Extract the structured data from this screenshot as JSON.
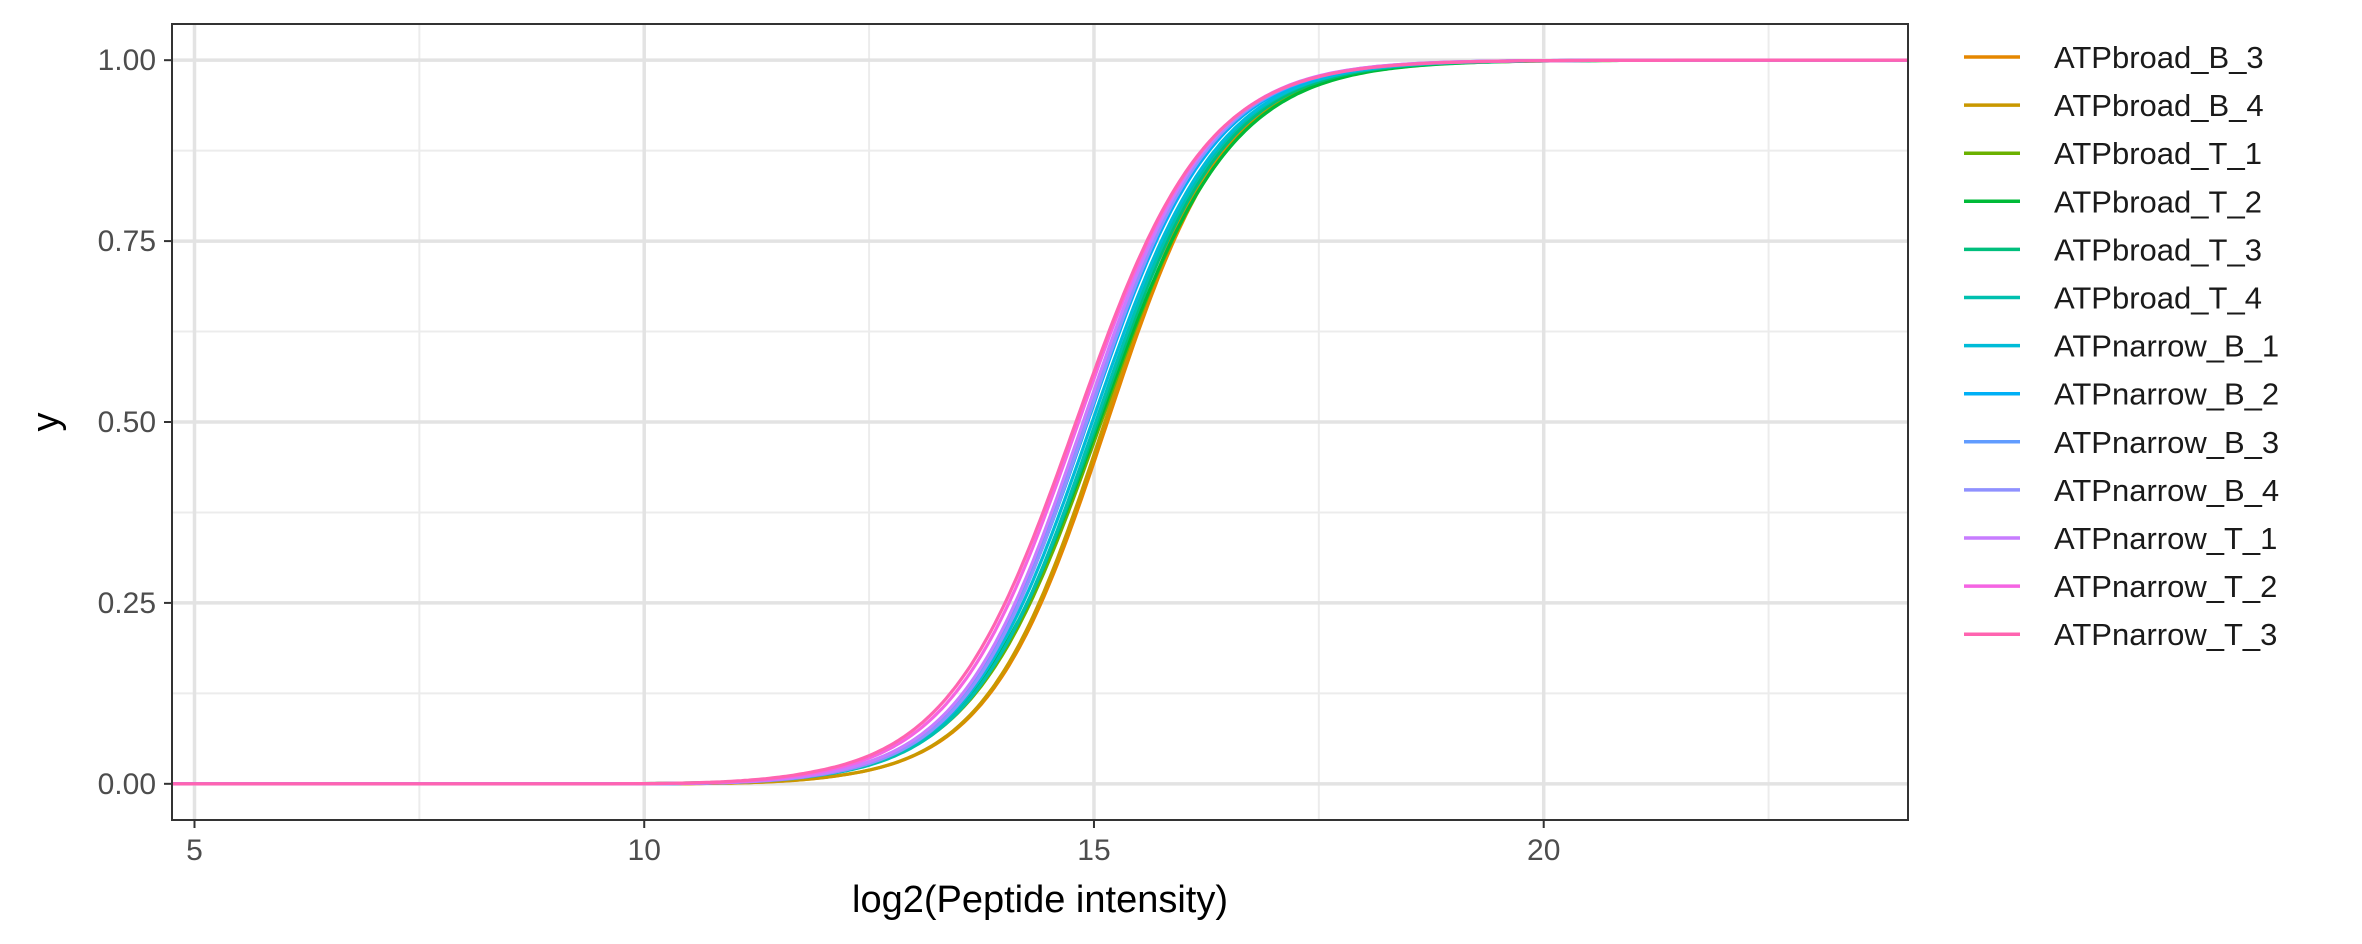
{
  "chart_data": {
    "type": "line",
    "xlabel": "log2(Peptide intensity)",
    "ylabel": "y",
    "xlim": [
      4.75,
      24.05
    ],
    "ylim": [
      -0.05,
      1.05
    ],
    "x_ticks": [
      5,
      10,
      15,
      20
    ],
    "y_ticks": [
      0.0,
      0.25,
      0.5,
      0.75,
      1.0
    ],
    "x_tick_labels": [
      "5",
      "10",
      "15",
      "20"
    ],
    "y_tick_labels": [
      "0.00",
      "0.25",
      "0.50",
      "0.75",
      "1.00"
    ],
    "grid": true,
    "legend_position": "right",
    "series": [
      {
        "name": "ATPbroad_B_3",
        "color": "#E58700",
        "center": 15.15,
        "scale": 1.14,
        "onset": 10.2
      },
      {
        "name": "ATPbroad_B_4",
        "color": "#C99800",
        "center": 15.12,
        "scale": 1.13,
        "onset": 10.1
      },
      {
        "name": "ATPbroad_T_1",
        "color": "#6BB100",
        "center": 15.08,
        "scale": 1.22,
        "onset": 9.7
      },
      {
        "name": "ATPbroad_T_2",
        "color": "#00BA38",
        "center": 15.06,
        "scale": 1.24,
        "onset": 9.6
      },
      {
        "name": "ATPbroad_T_3",
        "color": "#00BF7D",
        "center": 15.04,
        "scale": 1.2,
        "onset": 9.8
      },
      {
        "name": "ATPbroad_T_4",
        "color": "#00C0AF",
        "center": 15.02,
        "scale": 1.18,
        "onset": 9.9
      },
      {
        "name": "ATPnarrow_B_1",
        "color": "#00BCD8",
        "center": 14.98,
        "scale": 1.19,
        "onset": 9.9
      },
      {
        "name": "ATPnarrow_B_2",
        "color": "#00B0F6",
        "center": 14.93,
        "scale": 1.18,
        "onset": 10.0
      },
      {
        "name": "ATPnarrow_B_3",
        "color": "#619CFF",
        "center": 14.9,
        "scale": 1.18,
        "onset": 10.0
      },
      {
        "name": "ATPnarrow_B_4",
        "color": "#8F91FF",
        "center": 14.92,
        "scale": 1.16,
        "onset": 10.0
      },
      {
        "name": "ATPnarrow_T_1",
        "color": "#C77CFF",
        "center": 14.88,
        "scale": 1.17,
        "onset": 10.0
      },
      {
        "name": "ATPnarrow_T_2",
        "color": "#F564E3",
        "center": 14.83,
        "scale": 1.2,
        "onset": 9.9
      },
      {
        "name": "ATPnarrow_T_3",
        "color": "#FF64B0",
        "center": 14.8,
        "scale": 1.22,
        "onset": 9.8
      }
    ]
  }
}
